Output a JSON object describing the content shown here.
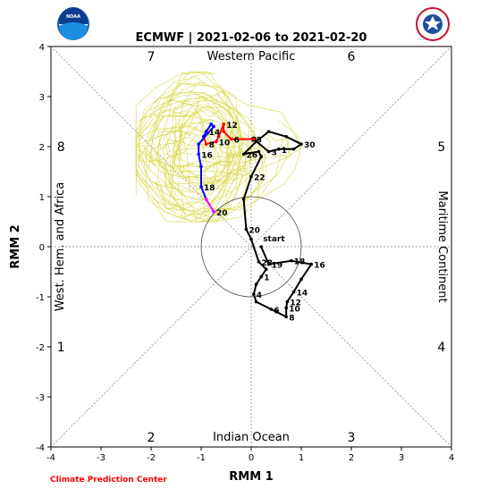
{
  "chart_data": {
    "type": "line",
    "title": "ECMWF | 2021-02-06 to 2021-02-20",
    "xlabel": "RMM 1",
    "ylabel": "RMM 2",
    "xlim": [
      -4,
      4
    ],
    "ylim": [
      -4,
      4
    ],
    "xticks": [
      -4,
      -3,
      -2,
      -1,
      0,
      1,
      2,
      3,
      4
    ],
    "yticks": [
      -4,
      -3,
      -2,
      -1,
      0,
      1,
      2,
      3,
      4
    ],
    "grid": "dashed phase boundary lines",
    "region_labels": {
      "top": "Western Pacific",
      "bottom": "Indian Ocean",
      "left": "West. Hem. and Africa",
      "right": "Maritime Continent"
    },
    "phase_numbers": [
      {
        "label": "1",
        "x": -3.8,
        "y": -2.0
      },
      {
        "label": "2",
        "x": -2.0,
        "y": -3.8
      },
      {
        "label": "3",
        "x": 2.0,
        "y": -3.8
      },
      {
        "label": "4",
        "x": 3.8,
        "y": -2.0
      },
      {
        "label": "5",
        "x": 3.8,
        "y": 2.0
      },
      {
        "label": "6",
        "x": 2.0,
        "y": 3.8
      },
      {
        "label": "7",
        "x": -2.0,
        "y": 3.8
      },
      {
        "label": "8",
        "x": -3.8,
        "y": 2.0
      }
    ],
    "unit_circle_radius": 1,
    "observed": {
      "color": "#000000",
      "start_label": "start",
      "points": [
        {
          "x": 0.2,
          "y": 0.0,
          "label": ""
        },
        {
          "x": 0.35,
          "y": -0.35,
          "label": "19"
        },
        {
          "x": 0.8,
          "y": -0.28,
          "label": "18"
        },
        {
          "x": 1.2,
          "y": -0.35,
          "label": "16"
        },
        {
          "x": 1.0,
          "y": -0.65,
          "label": ""
        },
        {
          "x": 0.85,
          "y": -0.9,
          "label": "14"
        },
        {
          "x": 0.72,
          "y": -1.1,
          "label": "12"
        },
        {
          "x": 0.7,
          "y": -1.22,
          "label": "10"
        },
        {
          "x": 0.7,
          "y": -1.4,
          "label": "8"
        },
        {
          "x": 0.5,
          "y": -1.3,
          "label": ""
        },
        {
          "x": 0.4,
          "y": -1.25,
          "label": "6"
        },
        {
          "x": 0.1,
          "y": -1.1,
          "label": ""
        },
        {
          "x": 0.05,
          "y": -0.95,
          "label": "4"
        },
        {
          "x": 0.1,
          "y": -0.75,
          "label": ""
        },
        {
          "x": 0.2,
          "y": -0.6,
          "label": "1"
        },
        {
          "x": 0.3,
          "y": -0.45,
          "label": ""
        },
        {
          "x": 0.15,
          "y": -0.3,
          "label": "28"
        },
        {
          "x": 0.0,
          "y": 0.15,
          "label": ""
        },
        {
          "x": -0.1,
          "y": 0.35,
          "label": "20"
        },
        {
          "x": -0.15,
          "y": 0.95,
          "label": ""
        },
        {
          "x": 0.0,
          "y": 1.4,
          "label": "22"
        },
        {
          "x": 0.2,
          "y": 1.8,
          "label": ""
        },
        {
          "x": 0.15,
          "y": 1.9,
          "label": ""
        },
        {
          "x": -0.15,
          "y": 1.85,
          "label": "26"
        },
        {
          "x": 0.1,
          "y": 2.1,
          "label": ""
        },
        {
          "x": 0.35,
          "y": 2.3,
          "label": ""
        },
        {
          "x": 0.7,
          "y": 2.2,
          "label": ""
        },
        {
          "x": 1.0,
          "y": 2.05,
          "label": "30"
        },
        {
          "x": 0.85,
          "y": 1.95,
          "label": ""
        },
        {
          "x": 0.55,
          "y": 1.95,
          "label": "1"
        },
        {
          "x": 0.35,
          "y": 1.9,
          "label": "3"
        },
        {
          "x": 0.05,
          "y": 2.15,
          "label": "5"
        }
      ]
    },
    "forecast": {
      "colors": {
        "week1": "#ff0000",
        "week2": "#0000ff",
        "week3": "#ff00ff"
      },
      "ensemble_color": "#d8d84a",
      "week1": [
        {
          "x": 0.05,
          "y": 2.15,
          "label": ""
        },
        {
          "x": -0.4,
          "y": 2.15,
          "label": "6"
        },
        {
          "x": -0.55,
          "y": 2.3,
          "label": ""
        },
        {
          "x": -0.55,
          "y": 2.45,
          "label": "12"
        },
        {
          "x": -0.65,
          "y": 2.2,
          "label": ""
        },
        {
          "x": -0.7,
          "y": 2.1,
          "label": "10"
        },
        {
          "x": -0.9,
          "y": 2.05,
          "label": "8"
        },
        {
          "x": -0.95,
          "y": 2.2,
          "label": ""
        }
      ],
      "week2": [
        {
          "x": -0.95,
          "y": 2.2,
          "label": ""
        },
        {
          "x": -0.9,
          "y": 2.3,
          "label": "14"
        },
        {
          "x": -0.8,
          "y": 2.45,
          "label": ""
        },
        {
          "x": -0.75,
          "y": 2.4,
          "label": ""
        },
        {
          "x": -1.05,
          "y": 2.05,
          "label": ""
        },
        {
          "x": -1.05,
          "y": 1.85,
          "label": "16"
        },
        {
          "x": -1.0,
          "y": 1.6,
          "label": ""
        },
        {
          "x": -1.0,
          "y": 1.2,
          "label": "18"
        },
        {
          "x": -0.9,
          "y": 0.95,
          "label": ""
        }
      ],
      "week3": [
        {
          "x": -0.9,
          "y": 0.95,
          "label": ""
        },
        {
          "x": -0.75,
          "y": 0.7,
          "label": "20"
        }
      ]
    }
  },
  "credit": "Climate Prediction Center",
  "logos": [
    "noaa-logo",
    "nws-logo"
  ]
}
